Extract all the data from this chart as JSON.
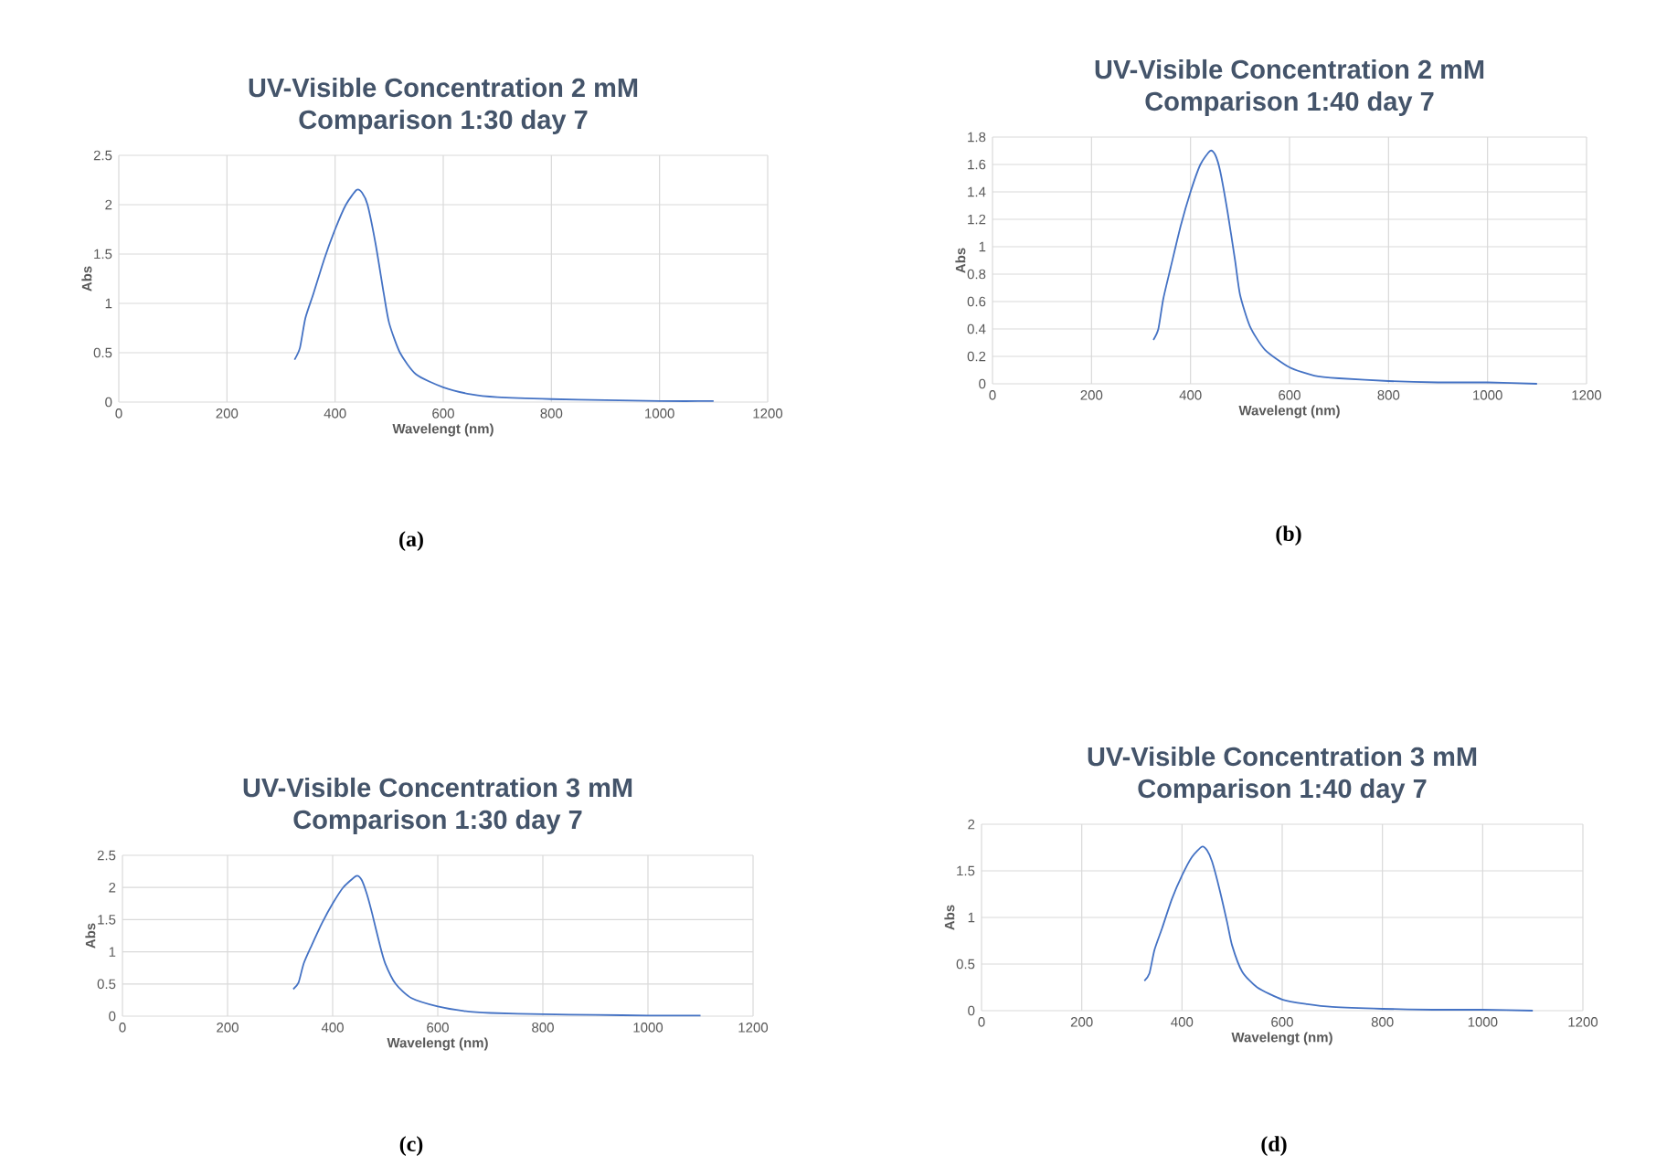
{
  "chart_data": [
    {
      "type": "line",
      "title": "UV-Visible Concentration 2 mM",
      "subtitle": "Comparison 1:30 day 7",
      "xlabel": "Wavelengt (nm)",
      "ylabel": "Abs",
      "annotations": [
        "(a)"
      ],
      "grid": true,
      "xlim": [
        0,
        1200
      ],
      "xticks": [
        0,
        200,
        400,
        600,
        800,
        1000,
        1200
      ],
      "ylim": [
        0,
        2.5
      ],
      "yticks": [
        0,
        0.5,
        1,
        1.5,
        2,
        2.5
      ],
      "x": [
        325,
        335,
        345,
        360,
        380,
        400,
        420,
        440,
        450,
        460,
        475,
        490,
        500,
        520,
        550,
        600,
        650,
        700,
        800,
        900,
        1000,
        1100
      ],
      "series": [
        {
          "color": "#4472c4",
          "values": [
            0.43,
            0.55,
            0.85,
            1.1,
            1.45,
            1.75,
            2.0,
            2.15,
            2.12,
            2.0,
            1.6,
            1.1,
            0.8,
            0.5,
            0.28,
            0.15,
            0.08,
            0.05,
            0.03,
            0.02,
            0.01,
            0.01
          ]
        }
      ]
    },
    {
      "type": "line",
      "title": "UV-Visible Concentration 2 mM",
      "subtitle": "Comparison 1:40 day 7",
      "xlabel": "Wavelengt (nm)",
      "ylabel": "Abs",
      "annotations": [
        "(b)"
      ],
      "grid": true,
      "xlim": [
        0,
        1200
      ],
      "xticks": [
        0,
        200,
        400,
        600,
        800,
        1000,
        1200
      ],
      "ylim": [
        0,
        1.8
      ],
      "yticks": [
        0,
        0.2,
        0.4,
        0.6,
        0.8,
        1,
        1.2,
        1.4,
        1.6,
        1.8
      ],
      "x": [
        325,
        335,
        345,
        360,
        380,
        400,
        420,
        440,
        450,
        460,
        475,
        490,
        500,
        520,
        550,
        600,
        650,
        700,
        800,
        900,
        1000,
        1100
      ],
      "series": [
        {
          "color": "#4472c4",
          "values": [
            0.32,
            0.4,
            0.62,
            0.85,
            1.15,
            1.4,
            1.6,
            1.7,
            1.67,
            1.55,
            1.25,
            0.9,
            0.65,
            0.42,
            0.25,
            0.12,
            0.06,
            0.04,
            0.02,
            0.01,
            0.01,
            0
          ]
        }
      ]
    },
    {
      "type": "line",
      "title": "UV-Visible Concentration 3 mM",
      "subtitle": "Comparison 1:30 day 7",
      "xlabel": "Wavelengt (nm)",
      "ylabel": "Abs",
      "annotations": [
        "(c)"
      ],
      "grid": true,
      "xlim": [
        0,
        1200
      ],
      "xticks": [
        0,
        200,
        400,
        600,
        800,
        1000,
        1200
      ],
      "ylim": [
        0,
        2.5
      ],
      "yticks": [
        0,
        0.5,
        1,
        1.5,
        2,
        2.5
      ],
      "x": [
        325,
        335,
        345,
        360,
        380,
        400,
        420,
        445,
        455,
        465,
        475,
        490,
        500,
        520,
        550,
        600,
        650,
        700,
        800,
        900,
        1000,
        1100
      ],
      "series": [
        {
          "color": "#4472c4",
          "values": [
            0.42,
            0.52,
            0.82,
            1.1,
            1.45,
            1.75,
            2.0,
            2.18,
            2.12,
            1.9,
            1.6,
            1.1,
            0.82,
            0.5,
            0.28,
            0.15,
            0.08,
            0.05,
            0.03,
            0.02,
            0.01,
            0.01
          ]
        }
      ]
    },
    {
      "type": "line",
      "title": "UV-Visible Concentration 3 mM",
      "subtitle": "Comparison 1:40 day 7",
      "xlabel": "Wavelengt (nm)",
      "ylabel": "Abs",
      "annotations": [
        "(d)"
      ],
      "grid": true,
      "xlim": [
        0,
        1200
      ],
      "xticks": [
        0,
        200,
        400,
        600,
        800,
        1000,
        1200
      ],
      "ylim": [
        0,
        2
      ],
      "yticks": [
        0,
        0.5,
        1,
        1.5,
        2
      ],
      "x": [
        325,
        335,
        345,
        360,
        380,
        400,
        420,
        440,
        450,
        460,
        475,
        490,
        500,
        520,
        550,
        600,
        650,
        700,
        800,
        900,
        1000,
        1100
      ],
      "series": [
        {
          "color": "#4472c4",
          "values": [
            0.32,
            0.4,
            0.65,
            0.88,
            1.2,
            1.45,
            1.65,
            1.76,
            1.72,
            1.6,
            1.3,
            0.95,
            0.7,
            0.42,
            0.25,
            0.12,
            0.07,
            0.04,
            0.02,
            0.01,
            0.01,
            0
          ]
        }
      ]
    }
  ]
}
